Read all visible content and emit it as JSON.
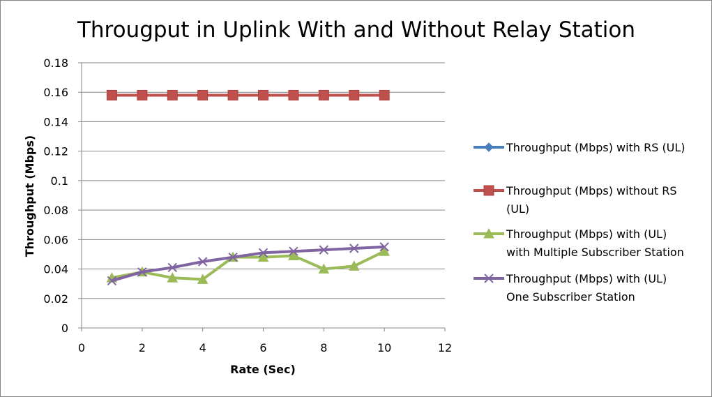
{
  "chart_data": {
    "type": "line",
    "title": "Througput in Uplink With and Without Relay  Station",
    "xlabel": "Rate (Sec)",
    "ylabel": "Throughput (Mbps)",
    "xlim": [
      0,
      12
    ],
    "ylim": [
      0,
      0.18
    ],
    "x_ticks": [
      0,
      2,
      4,
      6,
      8,
      10,
      12
    ],
    "y_ticks": [
      0,
      0.02,
      0.04,
      0.06,
      0.08,
      0.1,
      0.12,
      0.14,
      0.16,
      0.18
    ],
    "x_tick_labels": [
      "0",
      "2",
      "4",
      "6",
      "8",
      "10",
      "12"
    ],
    "y_tick_labels": [
      "0",
      "0.02",
      "0.04",
      "0.06",
      "0.08",
      "0.1",
      "0.12",
      "0.14",
      "0.16",
      "0.18"
    ],
    "grid": "horizontal",
    "legend_position": "right",
    "x": [
      1,
      2,
      3,
      4,
      5,
      6,
      7,
      8,
      9,
      10
    ],
    "series": [
      {
        "name": "Throughput (Mbps) with RS (UL)",
        "legend_lines": [
          "Throughput (Mbps) with RS (UL)"
        ],
        "color": "#4a7ebb",
        "marker": "diamond",
        "values": [
          0.158,
          0.158,
          0.158,
          0.158,
          0.158,
          0.158,
          0.158,
          0.158,
          0.158,
          0.158
        ]
      },
      {
        "name": "Throughput (Mbps) without RS (UL)",
        "legend_lines": [
          "Throughput (Mbps) without RS",
          "(UL)"
        ],
        "color": "#c0504d",
        "marker": "square",
        "values": [
          0.158,
          0.158,
          0.158,
          0.158,
          0.158,
          0.158,
          0.158,
          0.158,
          0.158,
          0.158
        ]
      },
      {
        "name": "Throughput (Mbps) with (UL) with Multiple Subscriber Station",
        "legend_lines": [
          "Throughput (Mbps) with (UL)",
          "with Multiple Subscriber Station"
        ],
        "color": "#9bbb59",
        "marker": "triangle",
        "values": [
          0.034,
          0.038,
          0.034,
          0.033,
          0.048,
          0.048,
          0.049,
          0.04,
          0.042,
          0.052
        ]
      },
      {
        "name": "Throughput (Mbps) with (UL) One Subscriber Station",
        "legend_lines": [
          "Throughput (Mbps) with (UL)",
          "One Subscriber Station"
        ],
        "color": "#8064a2",
        "marker": "x",
        "values": [
          0.032,
          0.038,
          0.041,
          0.045,
          0.048,
          0.051,
          0.052,
          0.053,
          0.054,
          0.055
        ]
      }
    ]
  }
}
